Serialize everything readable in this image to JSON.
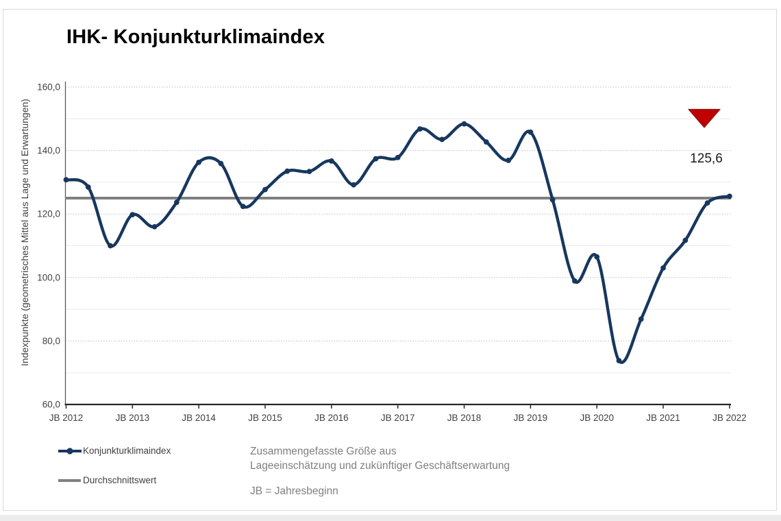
{
  "chart": {
    "title": "IHK- Konjunkturklimaindex",
    "y_axis_label": "Indexpunkte (geometrisches Mittel aus Lage und Erwartungen)",
    "latest_value_label": "125,6",
    "legend": [
      {
        "label": "Konjunkturklimaindex"
      },
      {
        "label": "Durchschnittswert"
      }
    ],
    "footnotes": {
      "line1": "Zusammengefasste Größe aus",
      "line2": "Lageeinschätzung und zukünftiger Geschäftserwartung",
      "line3": "JB = Jahresbeginn"
    }
  },
  "chart_data": {
    "type": "line",
    "title": "IHK- Konjunkturklimaindex",
    "ylabel": "Indexpunkte (geometrisches Mittel aus Lage und Erwartungen)",
    "xlabel": "",
    "ylim": [
      60,
      160
    ],
    "y_major_step": 20,
    "y_minor_step": 10,
    "grid": "horizontal, dotted major lines every 20, faint minor lines every 10",
    "legend_position": "bottom-left",
    "y_tick_labels": [
      "160,0",
      "140,0",
      "120,0",
      "100,0",
      "80,0",
      "60,0"
    ],
    "y_tick_values": [
      160,
      140,
      120,
      100,
      80,
      60
    ],
    "x_tick_labels": [
      "JB 2012",
      "JB 2013",
      "JB 2014",
      "JB 2015",
      "JB 2016",
      "JB 2017",
      "JB 2018",
      "JB 2019",
      "JB 2020",
      "JB 2021",
      "JB 2022"
    ],
    "surveys_per_year": 3,
    "series": [
      {
        "name": "Konjunkturklimaindex",
        "style": "smooth-line-with-round-markers",
        "color": "#17375e",
        "values": [
          130.8,
          128.5,
          110.0,
          119.8,
          116.0,
          123.7,
          136.3,
          135.9,
          122.4,
          127.7,
          133.5,
          133.4,
          136.7,
          129.2,
          137.4,
          137.8,
          146.8,
          143.5,
          148.4,
          142.7,
          136.9,
          145.8,
          124.5,
          98.9,
          106.5,
          73.8,
          86.9,
          103.0,
          111.7,
          123.5,
          125.6
        ]
      },
      {
        "name": "Durchschnittswert",
        "style": "horizontal-reference-line",
        "color": "#7f7f7f",
        "value": 125.0
      }
    ],
    "annotations": [
      {
        "type": "trend-triangle-down",
        "color": "#c00000",
        "border_color": "#8b1a1a"
      },
      {
        "type": "value-label",
        "text": "125,6"
      }
    ],
    "axis_colors": {
      "x_axis": "#262626",
      "y_axis": "#595959",
      "tick_text": "#404040"
    },
    "grid_colors": {
      "major_dotted": "#bdbdbd",
      "minor_solid": "#eaeaea"
    }
  }
}
